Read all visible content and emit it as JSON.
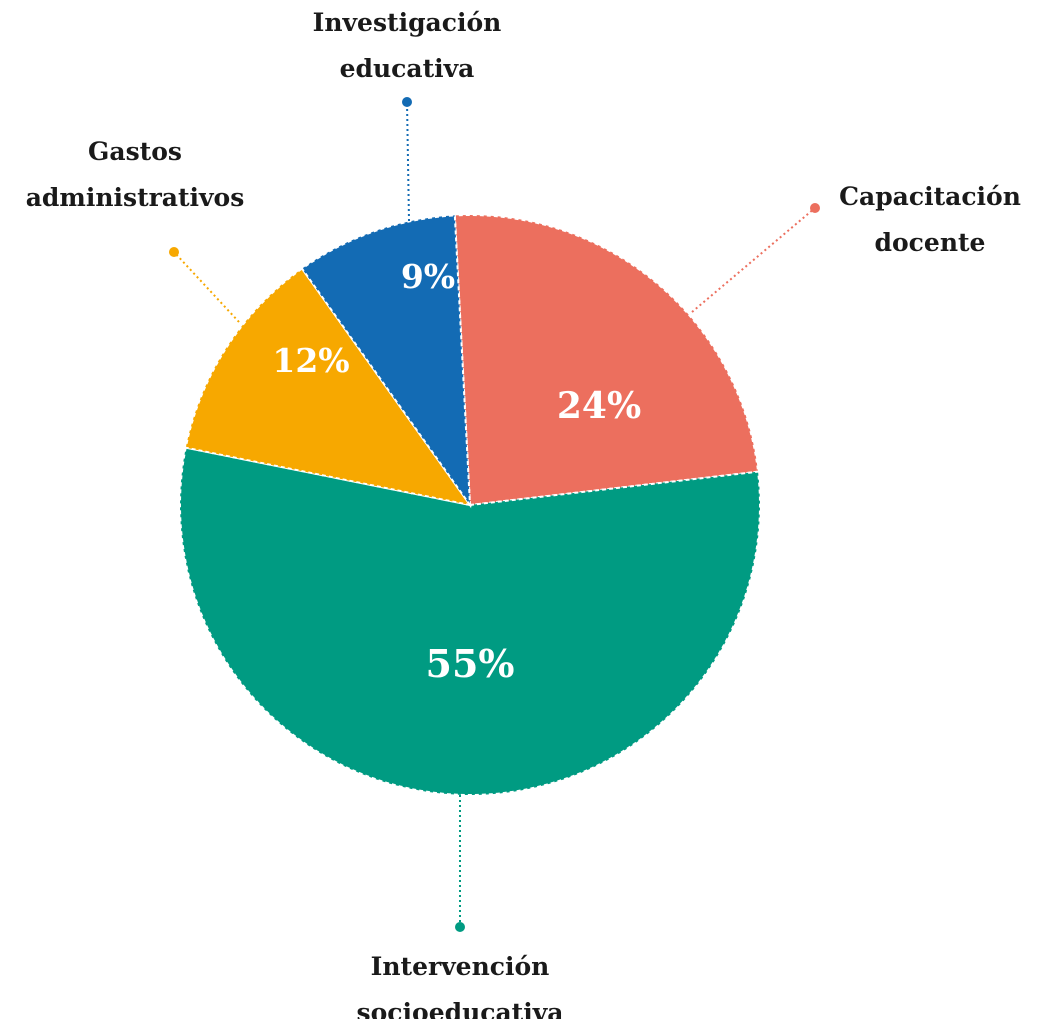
{
  "chart_data": {
    "type": "pie",
    "title": "",
    "slices": [
      {
        "label": "Capacitación docente",
        "lines": [
          "Capacitación",
          "docente"
        ],
        "value": 24,
        "display": "24%",
        "color": "#EC6F5E"
      },
      {
        "label": "Intervención socioeducativa",
        "lines": [
          "Intervención",
          "socioeducativa"
        ],
        "value": 55,
        "display": "55%",
        "color": "#009B82"
      },
      {
        "label": "Gastos administrativos",
        "lines": [
          "Gastos",
          "administrativos"
        ],
        "value": 12,
        "display": "12%",
        "color": "#F7A800"
      },
      {
        "label": "Investigación educativa",
        "lines": [
          "Investigación",
          "educativa"
        ],
        "value": 9,
        "display": "9%",
        "color": "#136BB4"
      }
    ],
    "start_angle_deg": -3,
    "direction": "clockwise",
    "slice_border": "white dashed",
    "leader_lines": "dotted"
  }
}
